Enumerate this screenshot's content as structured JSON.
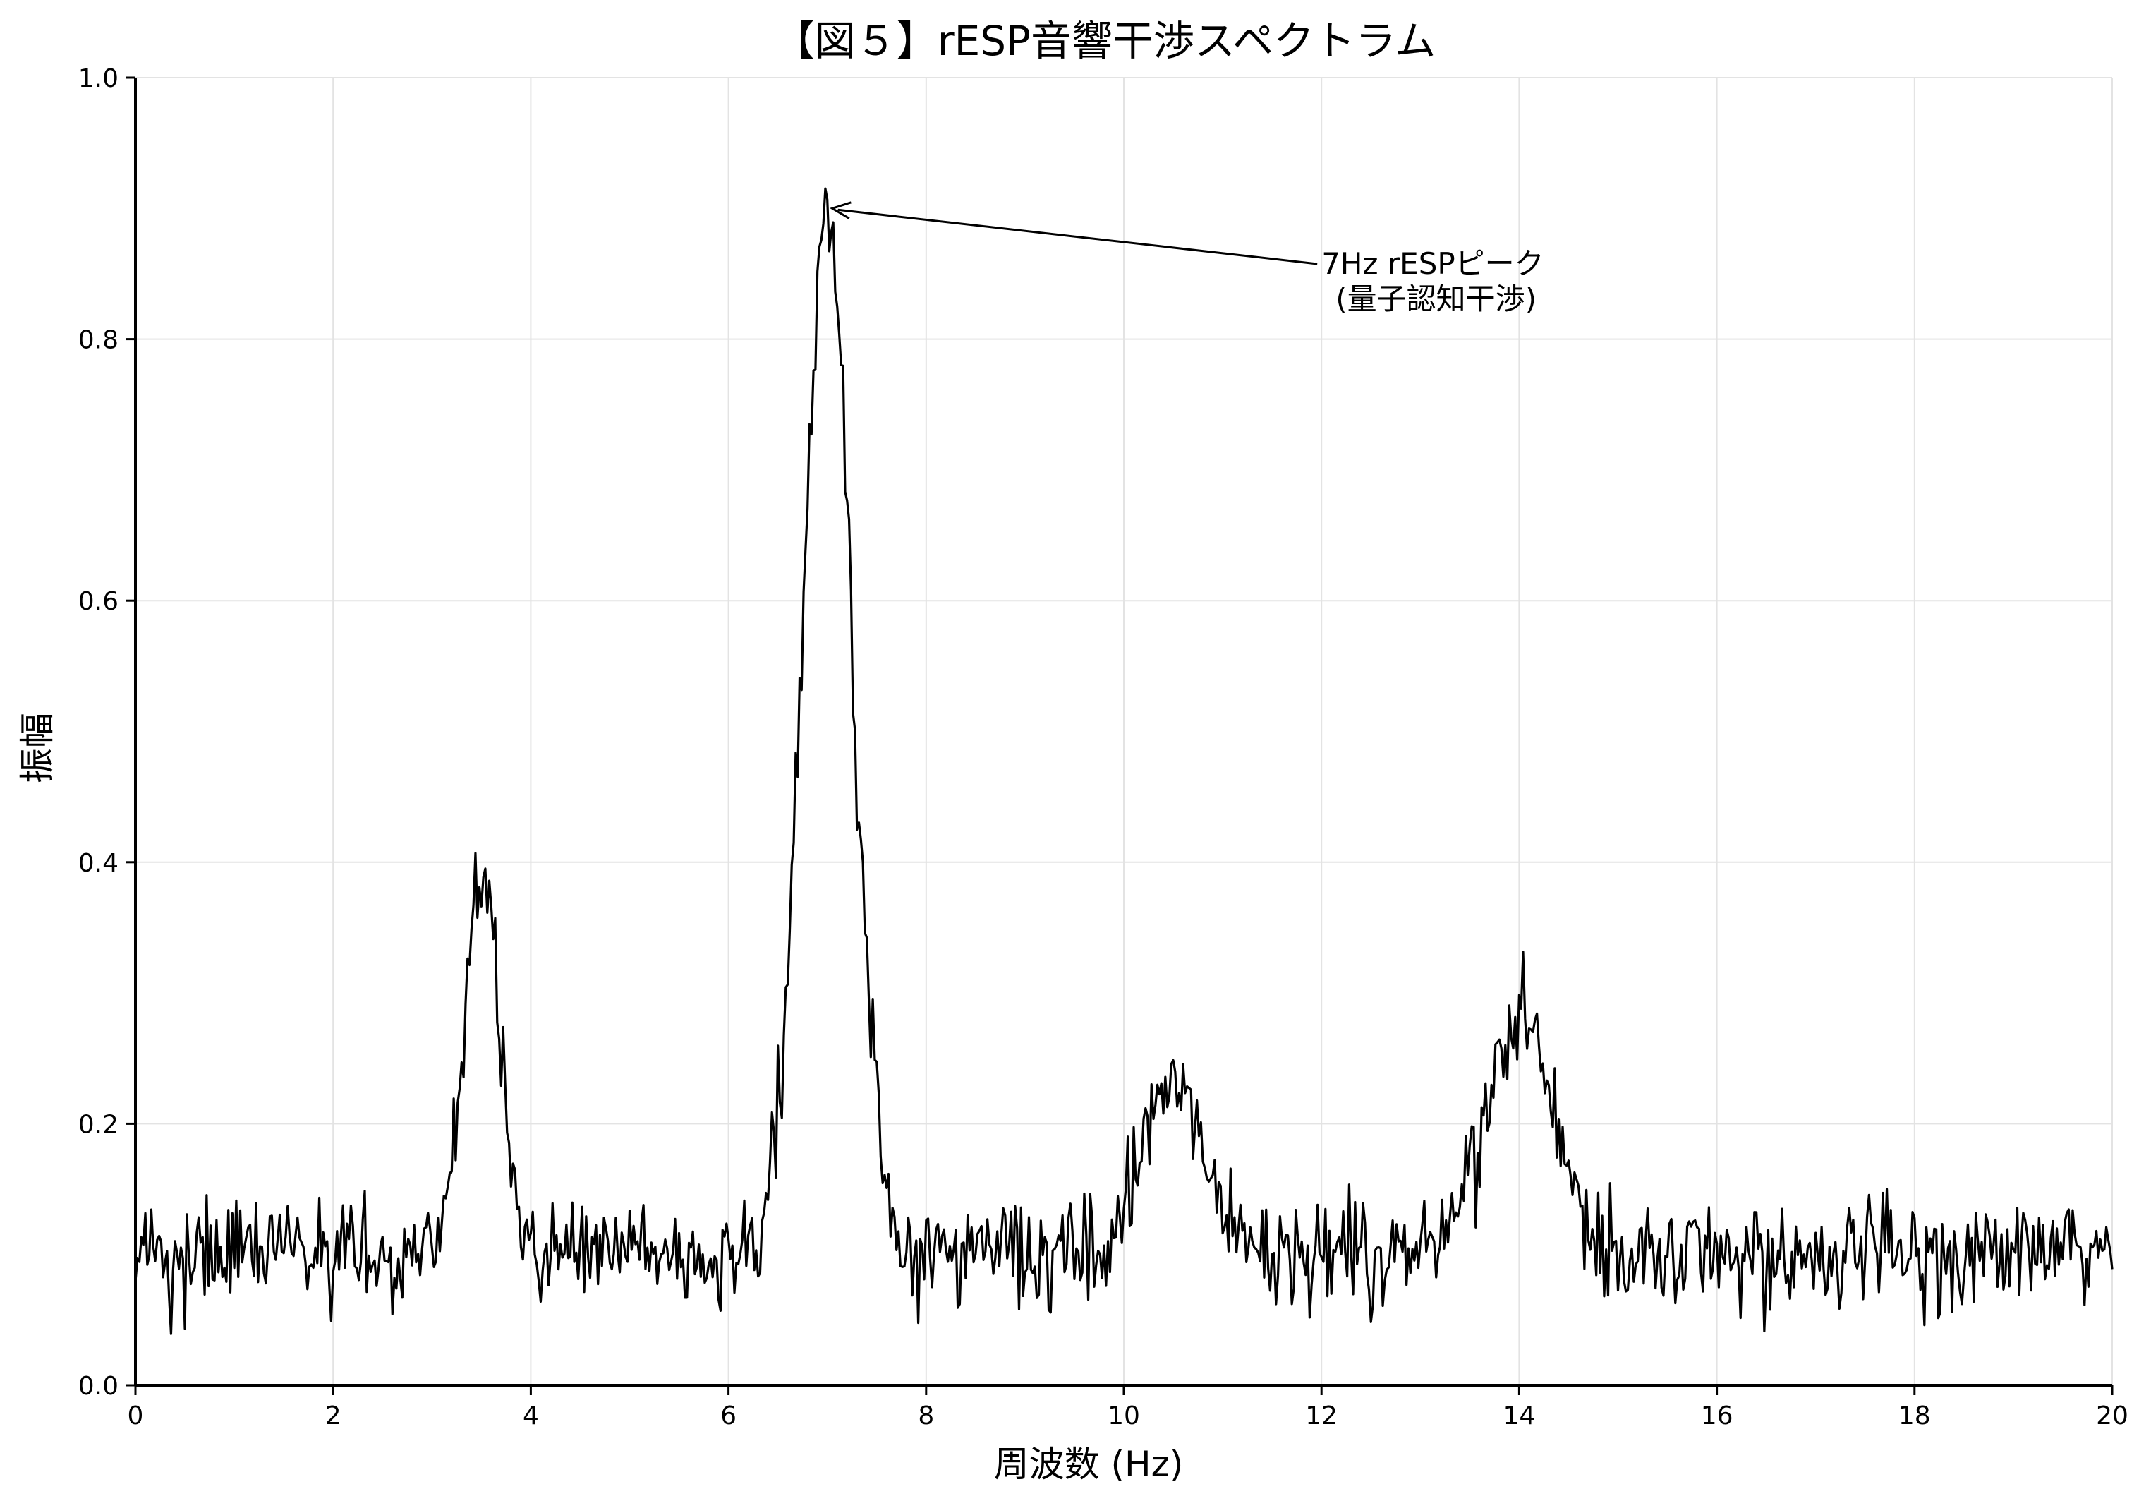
{
  "chart_data": {
    "type": "line",
    "title": "【図５】rESP音響干渉スペクトラム",
    "xlabel": "周波数 (Hz)",
    "ylabel": "振幅",
    "xlim": [
      0,
      20
    ],
    "ylim": [
      0,
      1.0
    ],
    "xticks": [
      0,
      2,
      4,
      6,
      8,
      10,
      12,
      14,
      16,
      18,
      20
    ],
    "xtick_labels": [
      "0",
      "2",
      "4",
      "6",
      "8",
      "10",
      "12",
      "14",
      "16",
      "18",
      "20"
    ],
    "yticks": [
      0.0,
      0.2,
      0.4,
      0.6,
      0.8,
      1.0
    ],
    "ytick_labels": [
      "0.0",
      "0.2",
      "0.4",
      "0.6",
      "0.8",
      "1.0"
    ],
    "grid": true,
    "line_color": "#000000",
    "grid_color": "#e3e3e3",
    "baseline": 0.1,
    "noise_amplitude": 0.02,
    "x_step": 0.02,
    "peaks": [
      {
        "x": 3.5,
        "amplitude": 0.29,
        "width": 0.18
      },
      {
        "x": 7.0,
        "amplitude": 0.79,
        "width": 0.25
      },
      {
        "x": 10.5,
        "amplitude": 0.14,
        "width": 0.3
      },
      {
        "x": 14.0,
        "amplitude": 0.18,
        "width": 0.35
      }
    ],
    "annotations": [
      {
        "label": "7Hz rESPピーク\n(量子認知干渉)",
        "xy": [
          7.05,
          0.9
        ],
        "xytext": [
          12.0,
          0.85
        ]
      }
    ]
  }
}
